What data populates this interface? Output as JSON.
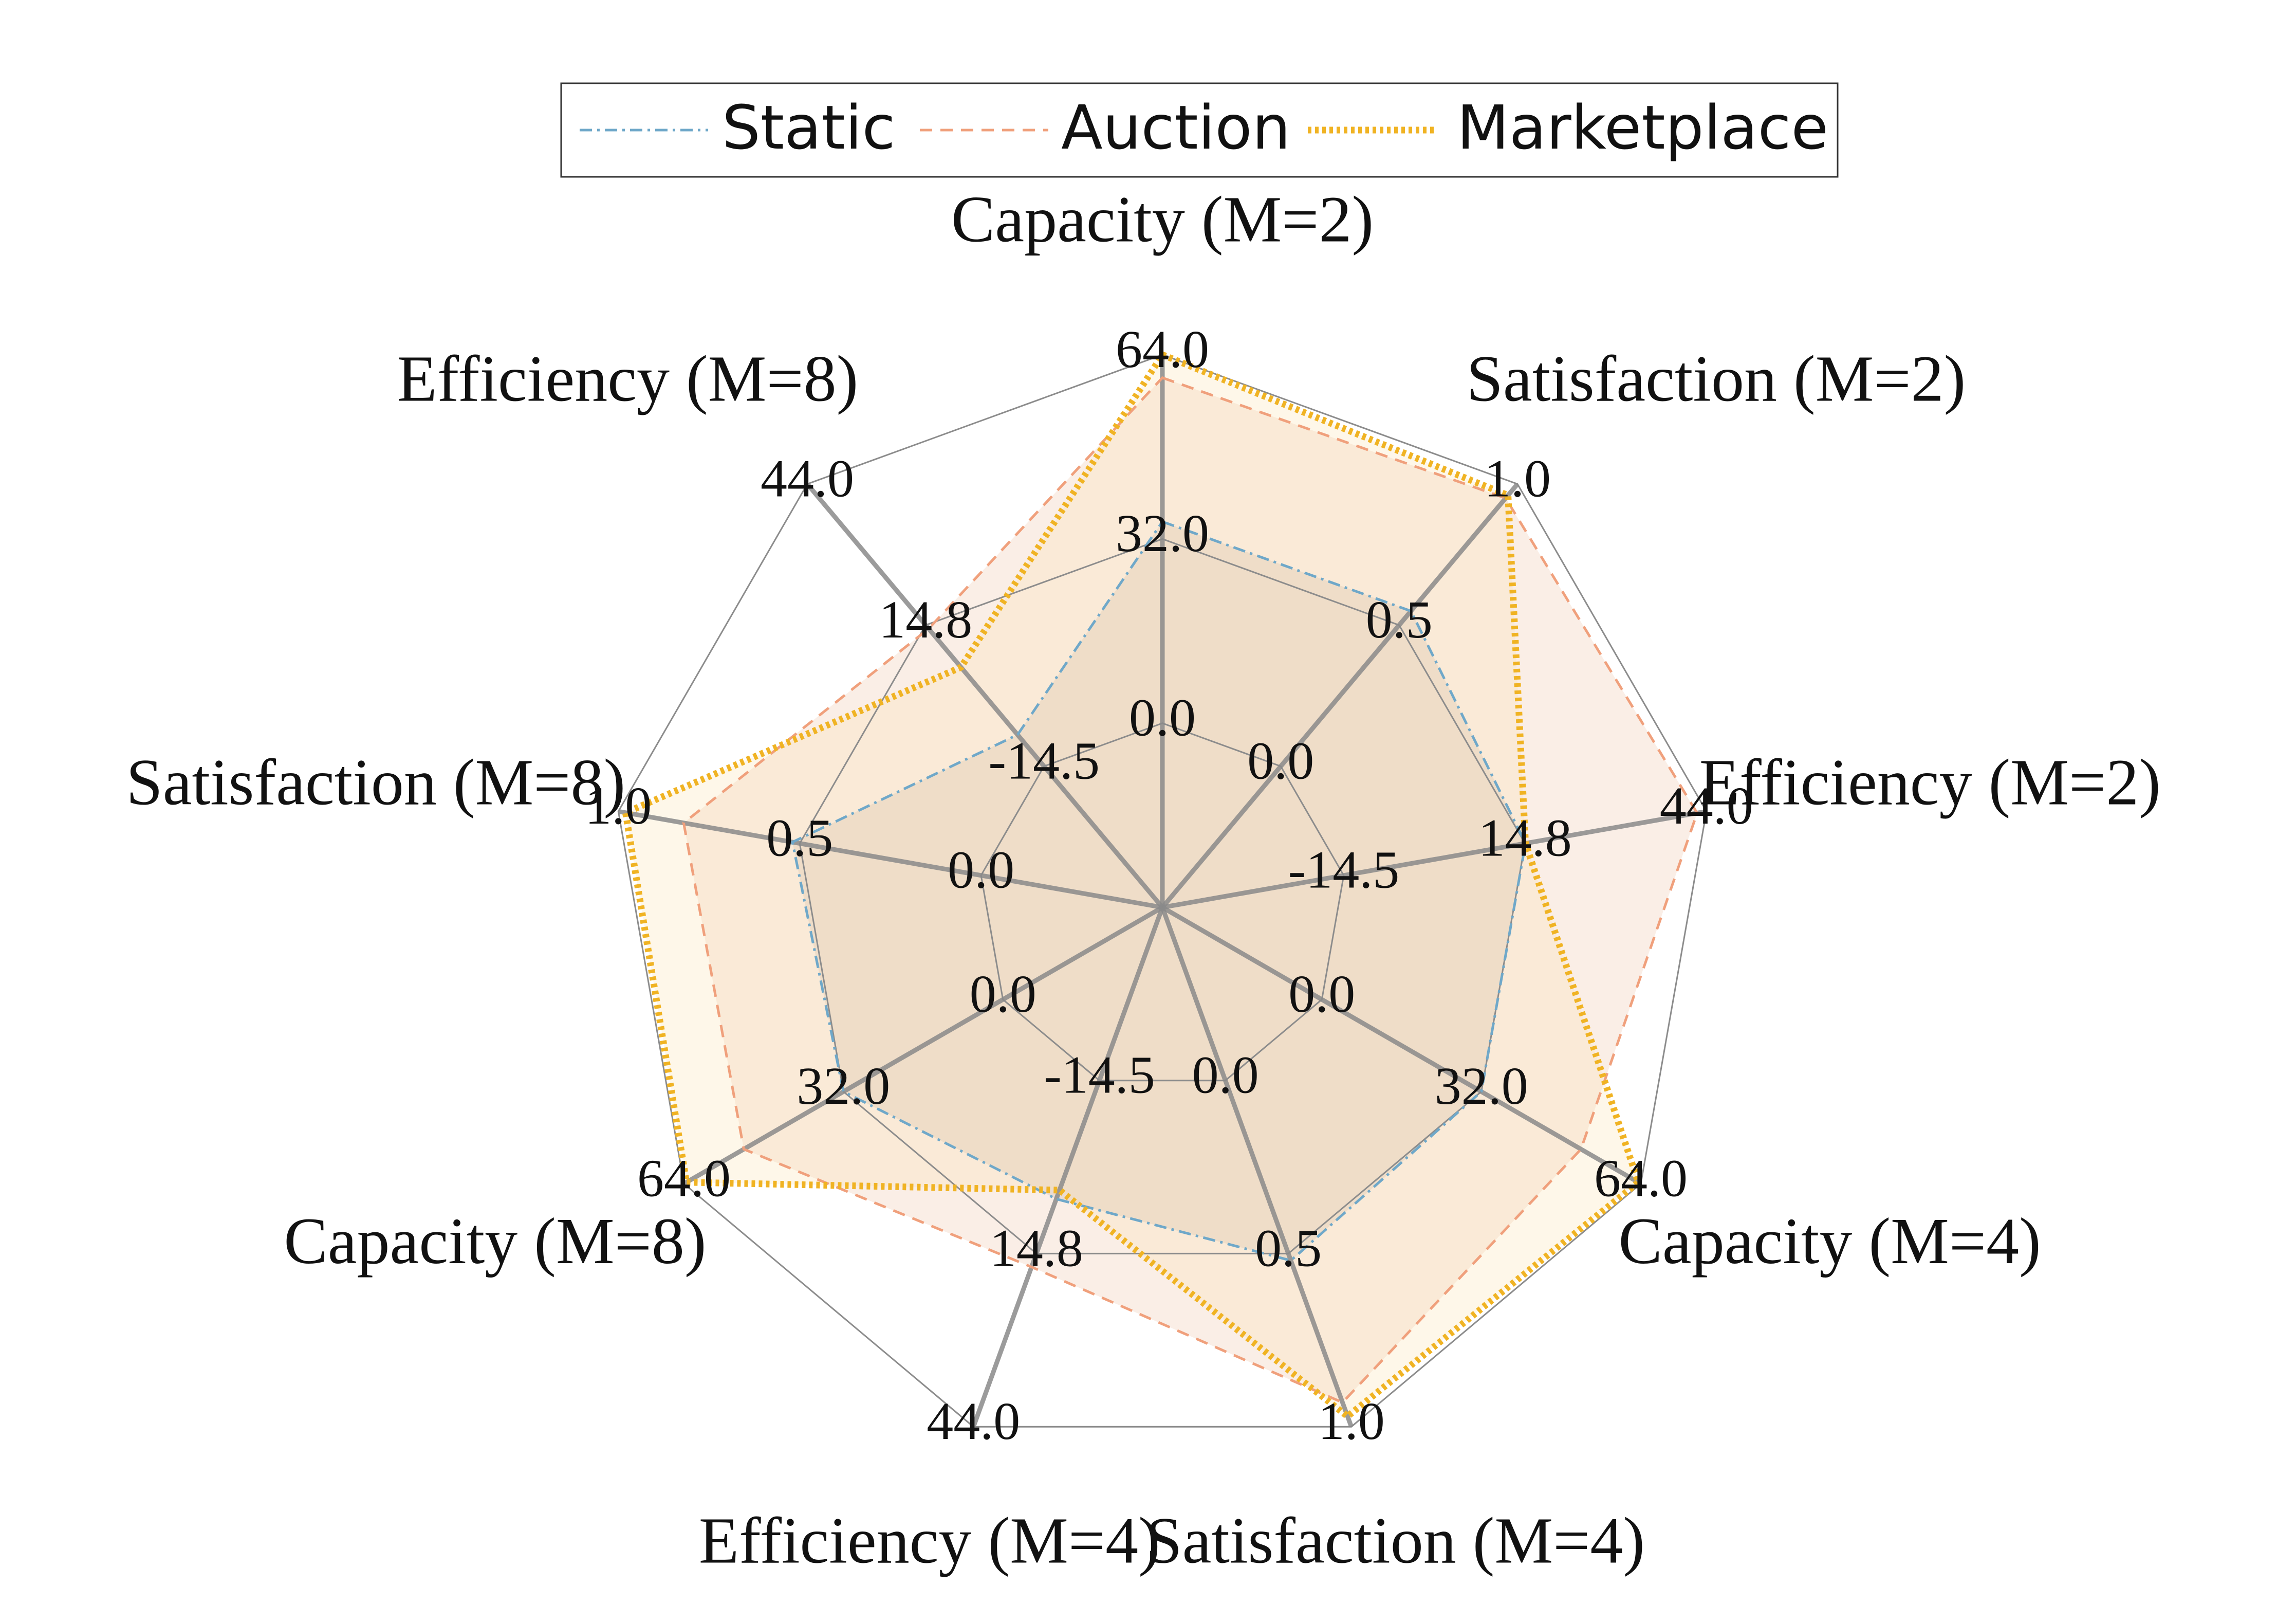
{
  "chart_data": {
    "type": "radar",
    "axes": [
      {
        "label": "Capacity (M=2)",
        "ticks": [
          "0.0",
          "32.0",
          "64.0"
        ]
      },
      {
        "label": "Satisfaction (M=2)",
        "ticks": [
          "0.0",
          "0.5",
          "1.0"
        ]
      },
      {
        "label": "Efficiency (M=2)",
        "ticks": [
          "-14.5",
          "14.8",
          "44.0"
        ]
      },
      {
        "label": "Capacity (M=4)",
        "ticks": [
          "0.0",
          "32.0",
          "64.0"
        ]
      },
      {
        "label": "Satisfaction (M=4)",
        "ticks": [
          "0.0",
          "0.5",
          "1.0"
        ]
      },
      {
        "label": "Efficiency (M=4)",
        "ticks": [
          "-14.5",
          "14.8",
          "44.0"
        ]
      },
      {
        "label": "Capacity (M=8)",
        "ticks": [
          "0.0",
          "32.0",
          "64.0"
        ]
      },
      {
        "label": "Satisfaction (M=8)",
        "ticks": [
          "0.0",
          "0.5",
          "1.0"
        ]
      },
      {
        "label": "Efficiency (M=8)",
        "ticks": [
          "-14.5",
          "14.8",
          "44.0"
        ]
      }
    ],
    "axis_ranges": [
      [
        -32,
        64
      ],
      [
        -0.5,
        1.0
      ],
      [
        -43.8,
        44.0
      ],
      [
        -32,
        64
      ],
      [
        -0.5,
        1.0
      ],
      [
        -43.8,
        44.0
      ],
      [
        -32,
        64
      ],
      [
        -0.5,
        1.0
      ],
      [
        -43.8,
        44.0
      ]
    ],
    "series": [
      {
        "name": "Static",
        "color": "#6fa8c9",
        "fill": "#b3a89e",
        "line_style": "dashdot",
        "values": [
          35.0,
          0.55,
          14.8,
          32.0,
          0.52,
          5.5,
          32.0,
          0.52,
          -8.0
        ]
      },
      {
        "name": "Auction",
        "color": "#f0a07c",
        "fill": "#ecc2a4",
        "line_style": "dashed",
        "values": [
          60.0,
          0.95,
          42.5,
          52.0,
          0.93,
          17.0,
          52.0,
          0.82,
          14.0
        ]
      },
      {
        "name": "Marketplace",
        "color": "#f0b323",
        "fill": "#fbe2b0",
        "line_style": "dotted",
        "values": [
          64.0,
          0.96,
          14.8,
          63.5,
          0.97,
          4.0,
          63.5,
          0.98,
          6.0
        ]
      }
    ],
    "legend_position": "top-center",
    "grid": true
  }
}
